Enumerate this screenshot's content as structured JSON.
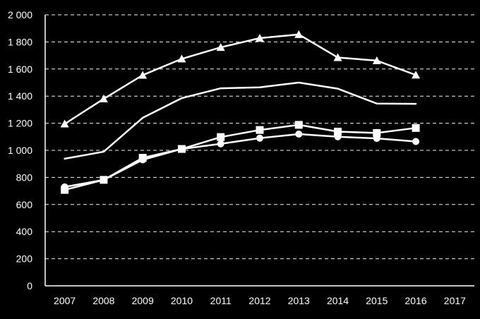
{
  "chart_data": {
    "type": "line",
    "title": "",
    "xlabel": "",
    "ylabel": "",
    "categories": [
      "2007",
      "2008",
      "2009",
      "2010",
      "2011",
      "2012",
      "2013",
      "2014",
      "2015",
      "2016",
      "2017"
    ],
    "ylim": [
      0,
      2000
    ],
    "yticks": [
      0,
      200,
      400,
      600,
      800,
      1000,
      1200,
      1400,
      1600,
      1800,
      2000
    ],
    "ytick_labels": [
      "0",
      "200",
      "400",
      "600",
      "800",
      "1 000",
      "1 200",
      "1 400",
      "1 600",
      "1 800",
      "2 000"
    ],
    "grid": true,
    "legend": "none",
    "colors": {
      "background": "#000000",
      "foreground": "#ffffff"
    },
    "series": [
      {
        "marker": "triangle",
        "values": [
          1195,
          1380,
          1555,
          1675,
          1760,
          1828,
          1855,
          1685,
          1662,
          1556,
          null
        ]
      },
      {
        "marker": "none",
        "values": [
          938,
          990,
          1240,
          1385,
          1458,
          1465,
          1500,
          1455,
          1345,
          1343,
          null
        ]
      },
      {
        "marker": "square",
        "values": [
          708,
          782,
          945,
          1010,
          1098,
          1150,
          1188,
          1138,
          1128,
          1165,
          null
        ]
      },
      {
        "marker": "circle",
        "values": [
          730,
          782,
          930,
          1010,
          1048,
          1090,
          1120,
          1100,
          1088,
          1065,
          null
        ]
      }
    ]
  }
}
